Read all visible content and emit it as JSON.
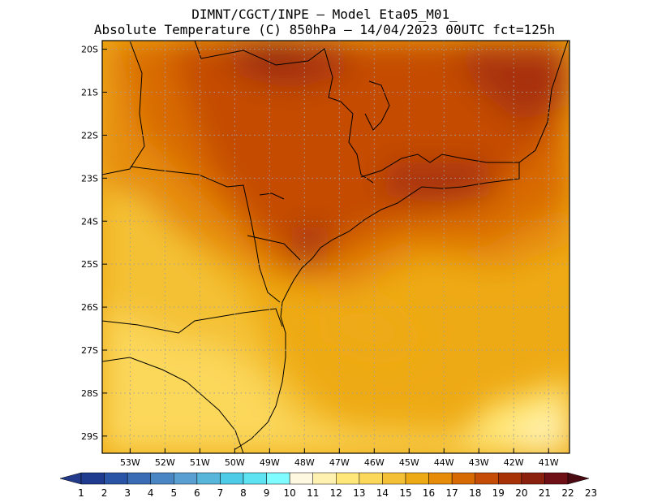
{
  "header": {
    "line1": "DIMNT/CGCT/INPE –  Model Eta05_M01_",
    "line2": "Absolute Temperature (C) 850hPa –  14/04/2023 00UTC fct=125h"
  },
  "map": {
    "lon_range": [
      -53.8,
      -40.4
    ],
    "lat_range": [
      -29.4,
      -19.8
    ],
    "lon_ticks": [
      {
        "v": -53,
        "label": "53W"
      },
      {
        "v": -52,
        "label": "52W"
      },
      {
        "v": -51,
        "label": "51W"
      },
      {
        "v": -50,
        "label": "50W"
      },
      {
        "v": -49,
        "label": "49W"
      },
      {
        "v": -48,
        "label": "48W"
      },
      {
        "v": -47,
        "label": "47W"
      },
      {
        "v": -46,
        "label": "46W"
      },
      {
        "v": -45,
        "label": "45W"
      },
      {
        "v": -44,
        "label": "44W"
      },
      {
        "v": -43,
        "label": "43W"
      },
      {
        "v": -42,
        "label": "42W"
      },
      {
        "v": -41,
        "label": "41W"
      }
    ],
    "lat_ticks": [
      {
        "v": -20,
        "label": "20S"
      },
      {
        "v": -21,
        "label": "21S"
      },
      {
        "v": -22,
        "label": "22S"
      },
      {
        "v": -23,
        "label": "23S"
      },
      {
        "v": -24,
        "label": "24S"
      },
      {
        "v": -25,
        "label": "25S"
      },
      {
        "v": -26,
        "label": "26S"
      },
      {
        "v": -27,
        "label": "27S"
      },
      {
        "v": -28,
        "label": "28S"
      },
      {
        "v": -29,
        "label": "29S"
      }
    ],
    "grid": "dotted",
    "field": "temperature 850hPa, warm (21-22 C) north and along coast of Sao Paulo / Rio, cooling to 13-14 C in the south-west"
  },
  "colorbar": {
    "labels": [
      "1",
      "2",
      "3",
      "4",
      "5",
      "6",
      "7",
      "8",
      "9",
      "10",
      "11",
      "12",
      "13",
      "14",
      "15",
      "16",
      "17",
      "18",
      "19",
      "20",
      "21",
      "22",
      "23"
    ],
    "colors": [
      "#1e3b8f",
      "#2a54a6",
      "#3a6cb6",
      "#4a86c4",
      "#5a9fd2",
      "#57b6da",
      "#4ecbe6",
      "#5ee3f2",
      "#7ffcff",
      "#fff8e0",
      "#fff2b0",
      "#ffe77a",
      "#fbd75a",
      "#f4c136",
      "#eeaa14",
      "#e68c08",
      "#d86a04",
      "#c44c06",
      "#a83208",
      "#8a200e",
      "#6e1016"
    ],
    "end_low": "#233a8a",
    "end_high": "#4a0a12"
  }
}
